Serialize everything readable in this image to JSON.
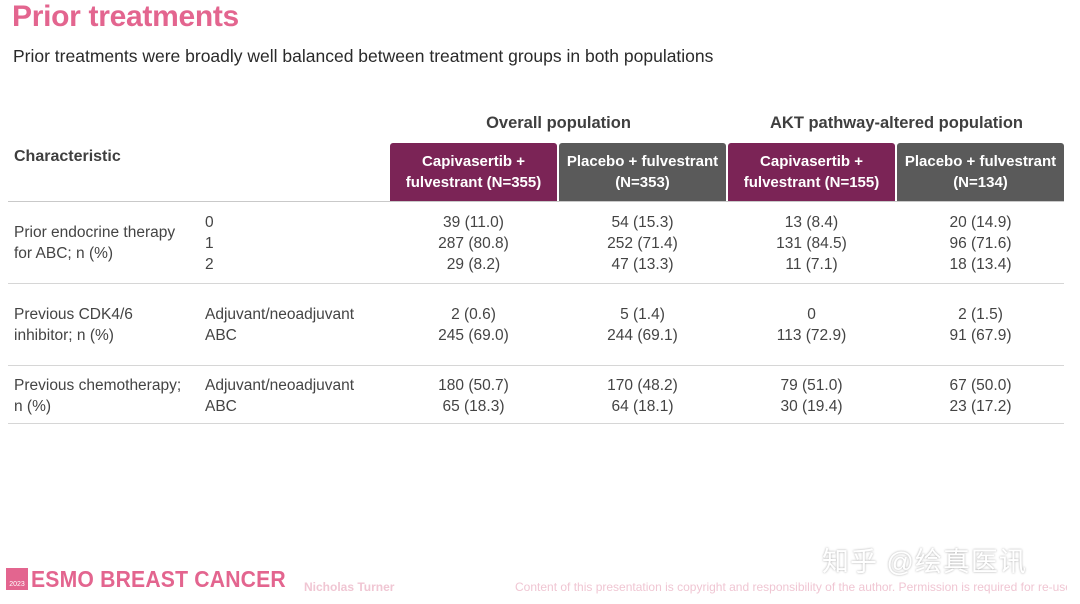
{
  "slide": {
    "title": "Prior treatments",
    "subtitle": "Prior treatments were broadly well balanced between treatment groups in both populations"
  },
  "table": {
    "characteristic_header": "Characteristic",
    "groups": [
      "Overall population",
      "AKT pathway-altered population"
    ],
    "columns": [
      {
        "label": "Capivasertib + fulvestrant (N=355)",
        "color": "#7b2456"
      },
      {
        "label": "Placebo + fulvestrant (N=353)",
        "color": "#5a5a5a"
      },
      {
        "label": "Capivasertib + fulvestrant (N=155)",
        "color": "#7b2456"
      },
      {
        "label": "Placebo + fulvestrant (N=134)",
        "color": "#5a5a5a"
      }
    ],
    "rows": [
      {
        "characteristic": "Prior endocrine therapy for ABC; n (%)",
        "sub": [
          "0",
          "1",
          "2"
        ],
        "values": [
          [
            "39 (11.0)",
            "287 (80.8)",
            "29 (8.2)"
          ],
          [
            "54 (15.3)",
            "252 (71.4)",
            "47 (13.3)"
          ],
          [
            "13 (8.4)",
            "131 (84.5)",
            "11 (7.1)"
          ],
          [
            "20 (14.9)",
            "96 (71.6)",
            "18 (13.4)"
          ]
        ]
      },
      {
        "characteristic": "Previous CDK4/6 inhibitor; n (%)",
        "sub": [
          "Adjuvant/neoadjuvant",
          "ABC"
        ],
        "values": [
          [
            "2 (0.6)",
            "245 (69.0)"
          ],
          [
            "5 (1.4)",
            "244 (69.1)"
          ],
          [
            "0",
            "113 (72.9)"
          ],
          [
            "2 (1.5)",
            "91 (67.9)"
          ]
        ]
      },
      {
        "characteristic": "Previous chemotherapy; n (%)",
        "sub": [
          "Adjuvant/neoadjuvant",
          "ABC"
        ],
        "values": [
          [
            "180 (50.7)",
            "65 (18.3)"
          ],
          [
            "170 (48.2)",
            "64 (18.1)"
          ],
          [
            "79 (51.0)",
            "30 (19.4)"
          ],
          [
            "67 (50.0)",
            "23 (17.2)"
          ]
        ]
      }
    ]
  },
  "footer": {
    "logo_year": "2023",
    "logo_text": "ESMO BREAST CANCER",
    "author": "Nicholas Turner",
    "copyright": "Content of this presentation is copyright and responsibility of the author. Permission is required for re-use.",
    "watermark": "知乎 @绘真医讯"
  }
}
